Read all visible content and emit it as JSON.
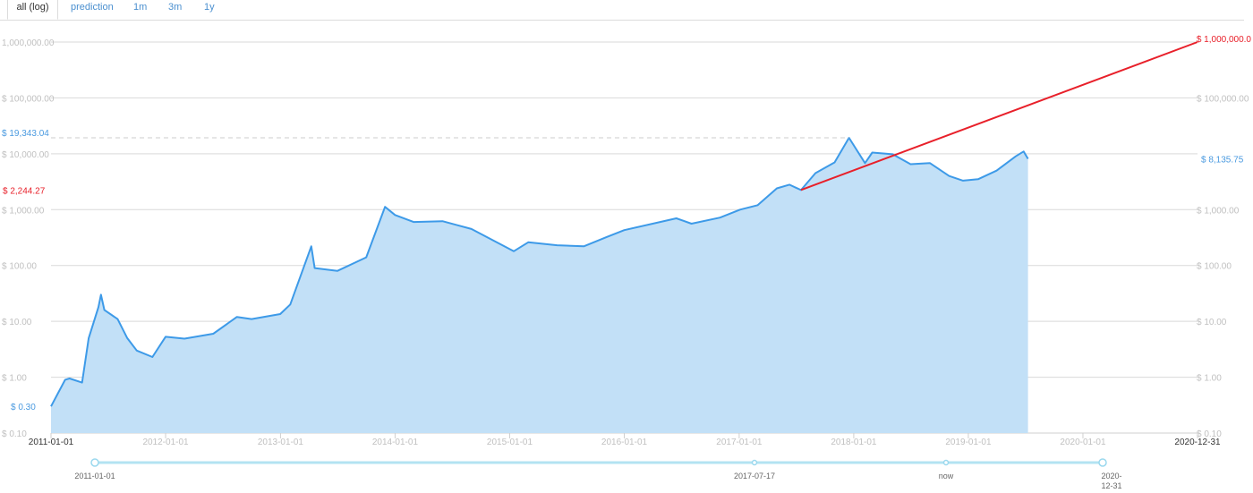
{
  "tabs": [
    {
      "label": "all (log)",
      "active": true
    },
    {
      "label": "prediction",
      "active": false
    },
    {
      "label": "1m",
      "active": false
    },
    {
      "label": "3m",
      "active": false
    },
    {
      "label": "1y",
      "active": false
    }
  ],
  "chart_data": {
    "type": "area",
    "yscale": "log",
    "ylim": [
      0.1,
      1000000
    ],
    "xlim": [
      "2011-01-01",
      "2020-12-31"
    ],
    "x_ticks": [
      "2011-01-01",
      "2012-01-01",
      "2013-01-01",
      "2014-01-01",
      "2015-01-01",
      "2016-01-01",
      "2017-01-01",
      "2018-01-01",
      "2019-01-01",
      "2020-01-01",
      "2020-12-31"
    ],
    "y_ticks_left": [
      "1,000,000.00",
      "$ 100,000.00",
      "$ 10,000.00",
      "$ 1,000.00",
      "$ 100.00",
      "$ 10.00",
      "$ 1.00",
      "$ 0.10"
    ],
    "y_ticks_right": [
      "$ 100,000.00",
      "$ 1,000.00",
      "$ 100.00",
      "$ 10.00",
      "$ 1.00",
      "$ 0.10"
    ],
    "series": [
      {
        "type": "area",
        "x": [
          "2011-01-01",
          "2011-02-15",
          "2011-03-01",
          "2011-04-10",
          "2011-05-01",
          "2011-06-01",
          "2011-06-09",
          "2011-06-20",
          "2011-08-01",
          "2011-09-01",
          "2011-10-01",
          "2011-11-20",
          "2012-01-01",
          "2012-03-01",
          "2012-06-01",
          "2012-08-15",
          "2012-10-01",
          "2012-12-31",
          "2013-02-01",
          "2013-04-09",
          "2013-04-20",
          "2013-07-01",
          "2013-10-01",
          "2013-11-30",
          "2014-01-01",
          "2014-03-01",
          "2014-06-01",
          "2014-09-01",
          "2015-01-14",
          "2015-03-01",
          "2015-06-01",
          "2015-08-25",
          "2015-11-04",
          "2016-01-01",
          "2016-06-15",
          "2016-08-02",
          "2016-11-01",
          "2017-01-04",
          "2017-03-01",
          "2017-05-01",
          "2017-06-10",
          "2017-07-17",
          "2017-09-01",
          "2017-11-01",
          "2017-12-17",
          "2018-02-06",
          "2018-03-01",
          "2018-05-05",
          "2018-07-01",
          "2018-09-01",
          "2018-11-01",
          "2018-12-15",
          "2019-02-01",
          "2019-04-01",
          "2019-06-01",
          "2019-06-26",
          "2019-07-10"
        ],
        "y": [
          0.3,
          0.9,
          0.95,
          0.8,
          5,
          18,
          30,
          16,
          11,
          5,
          3,
          2.3,
          5.3,
          4.9,
          6,
          12,
          11,
          13.5,
          20,
          220,
          90,
          80,
          140,
          1120,
          800,
          600,
          620,
          450,
          180,
          260,
          230,
          220,
          320,
          430,
          700,
          560,
          720,
          1000,
          1200,
          2400,
          2800,
          2244.27,
          4500,
          7000,
          19343.04,
          6800,
          10500,
          9800,
          6500,
          6800,
          4000,
          3300,
          3500,
          5000,
          9000,
          11000,
          8135.75
        ]
      },
      {
        "name": "prediction",
        "type": "line",
        "x": [
          "2017-07-17",
          "2020-12-31"
        ],
        "y": [
          2244.27,
          1000000
        ]
      }
    ],
    "annotations": {
      "start_value": "$ 0.30",
      "peak_value": "$ 19,343.04",
      "current_value": "$ 8,135.75",
      "prediction_start": "$ 2,244.27",
      "prediction_end": "$ 1,000,000.0"
    },
    "navigator": {
      "labels": [
        "2011-01-01",
        "2017-07-17",
        "now",
        "2020-12-31"
      ]
    },
    "colors": {
      "area_line": "#3d9ae8",
      "area_fill": "#c2e0f7",
      "prediction_line": "#e8202a",
      "grid": "#d9d9d9",
      "tick_text": "#c0c0c0",
      "label_blue": "#4a9ae0",
      "label_red": "#e8202a"
    },
    "grid": true
  }
}
